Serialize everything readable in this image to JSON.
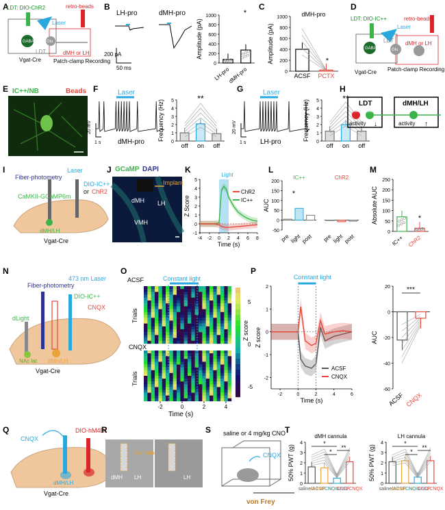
{
  "figure": {
    "panel_labels": [
      "A",
      "B",
      "C",
      "D",
      "E",
      "F",
      "G",
      "H",
      "I",
      "J",
      "K",
      "L",
      "M",
      "N",
      "O",
      "P",
      "Q",
      "R",
      "S",
      "T"
    ],
    "A": {
      "ldt_injection": "LDT: DIO-ChR2",
      "retro_beads": "retro-beads",
      "laser": "Laser",
      "gaba": "GABA",
      "ldt": "LDT",
      "glu": "Glu",
      "target": "dMH or LH",
      "mouse": "Vgat-Cre",
      "recording": "Patch-clamp\nRecording"
    },
    "B": {
      "trace1": "LH-pro",
      "trace2": "dMH-pro",
      "scale_y": "200 pA",
      "scale_x": "50 ms",
      "ylabel": "Amplitude (pA)",
      "cats": [
        "LH-pro",
        "dMH-pro"
      ],
      "sig": "*"
    },
    "C": {
      "title": "dMH-pro",
      "ylabel": "Amplitude (pA)",
      "cats": [
        "ACSF",
        "PCTX"
      ],
      "sig": "*"
    },
    "D": {
      "ldt_injection": "LDT: DIO-IC++",
      "retro_beads": "retro-beads",
      "laser": "Laser",
      "gaba": "GABA",
      "ldt": "LDT",
      "glu": "Glu",
      "target": "dMH or LH",
      "mouse": "Vgat-Cre",
      "recording": "Patch-clamp\nRecording"
    },
    "E": {
      "label1": "IC++/NB",
      "label2": "Beads"
    },
    "F": {
      "laser": "Laser",
      "scale_y": "20 mV",
      "scale_x": "1 s",
      "cell": "dMH-pro",
      "ylabel": "Frequency (Hz)",
      "cats": [
        "off",
        "on",
        "off"
      ],
      "sig": "**"
    },
    "G": {
      "laser": "Laser",
      "scale_y": "20 mV",
      "scale_x": "1 s",
      "cell": "LH-pro",
      "ylabel": "Frequency (Hz)",
      "cats": [
        "off",
        "on",
        "off"
      ],
      "sig": "**"
    },
    "H": {
      "ldt": "LDT",
      "target": "dMH/LH",
      "gaba": "GABA",
      "glu": "Glu",
      "activity": "activity"
    },
    "I": {
      "fiber": "Fiber-photometry",
      "laser": "Laser",
      "virus": "CaMKII-GCaMP6m",
      "opsin": "DIO-IC++",
      "or": "or",
      "opsin2": "ChR2",
      "target": "dMH/LH",
      "mouse": "Vgat-Cre"
    },
    "J": {
      "stain1": "GCaMP",
      "stain2": "DAPI",
      "implant": "Implant",
      "r1": "dMH",
      "r2": "LH",
      "r3": "VMH"
    },
    "K": {
      "light": "Light",
      "xlabel": "Time (s)",
      "ylabel": "Z Score",
      "s1": "ChR2",
      "s2": "IC++"
    },
    "L": {
      "g1": "IC++",
      "g2": "ChR2",
      "ylabel": "AUC",
      "cats": [
        "pre",
        "light",
        "post"
      ],
      "sig": "*"
    },
    "M": {
      "ylabel": "Absolute AUC",
      "cats": [
        "IC++",
        "ChR2"
      ],
      "sig": "*"
    },
    "N": {
      "fiber": "Fiber-photometry",
      "laser": "473 nm Laser",
      "opsin": "DIO-IC++",
      "drug": "CNQX",
      "sensor": "dLight",
      "nac": "NAc lat",
      "target": "dMH/LH",
      "mouse": "Vgat-Cre"
    },
    "O": {
      "c1": "ACSF",
      "c2": "CNQX",
      "light": "Constant light",
      "ylabel": "Trials",
      "xlabel": "Time (s)",
      "cbar": "Z score"
    },
    "P": {
      "light": "Constant light",
      "xlabel": "Time (s)",
      "ylabel": "Z score",
      "s1": "ACSF",
      "s2": "CNQX",
      "ylabel2": "AUC",
      "cats": [
        "ACSF",
        "CNQX"
      ],
      "sig": "***"
    },
    "Q": {
      "drug": "CNQX",
      "virus": "DIO-hM4Di",
      "target": "dMH/LH",
      "mouse": "Vgat-Cre"
    },
    "R": {
      "cannula": "Cannula",
      "r1": "dMH",
      "r2": "LH",
      "r3": "LH"
    },
    "S": {
      "treatment": "saline or\n4 mg/kg CNO",
      "drug": "CNQX",
      "test": "von Frey"
    },
    "T": {
      "title1": "dMH cannula",
      "title2": "LH cannula",
      "ylabel": "50% PWT (g)",
      "cats": [
        "saline/\nACSF",
        "saline/\nCNQX",
        "CNO/\nACSF",
        "CNO/\nCNQX"
      ],
      "sig": "*"
    }
  },
  "chart_data": [
    {
      "panel": "B",
      "type": "bar",
      "categories": [
        "LH-pro",
        "dMH-pro"
      ],
      "values": [
        75,
        270
      ],
      "ylim": [
        0,
        1000
      ],
      "yticks": [
        0,
        200,
        400,
        600,
        800,
        1000
      ],
      "ylabel": "Amplitude (pA)"
    },
    {
      "panel": "C",
      "type": "bar",
      "categories": [
        "ACSF",
        "PCTX"
      ],
      "values": [
        400,
        20
      ],
      "ylim": [
        0,
        1000
      ],
      "yticks": [
        0,
        200,
        400,
        600,
        800,
        1000
      ],
      "ylabel": "Amplitude (pA)"
    },
    {
      "panel": "F",
      "type": "bar",
      "categories": [
        "off",
        "on",
        "off"
      ],
      "values": [
        1.0,
        2.1,
        0.9
      ],
      "ylim": [
        0,
        5
      ],
      "yticks": [
        0,
        1,
        2,
        3,
        4,
        5
      ],
      "ylabel": "Frequency (Hz)"
    },
    {
      "panel": "G",
      "type": "bar",
      "categories": [
        "off",
        "on",
        "off"
      ],
      "values": [
        1.2,
        2.0,
        1.2
      ],
      "ylim": [
        0,
        5
      ],
      "yticks": [
        0,
        1,
        2,
        3,
        4,
        5
      ],
      "ylabel": "Frequency (Hz)"
    },
    {
      "panel": "K",
      "type": "line",
      "xlabel": "Time (s)",
      "ylabel": "Z Score",
      "xlim": [
        -4,
        8
      ],
      "ylim": [
        -1,
        5
      ],
      "xticks": [
        -4,
        -2,
        0,
        2,
        4,
        6,
        8
      ],
      "yticks": [
        -1,
        0,
        1,
        2,
        3,
        4,
        5
      ],
      "x": [
        -4,
        -3,
        -2,
        -1,
        0,
        0.5,
        1,
        1.5,
        2,
        3,
        4,
        5,
        6,
        7,
        8
      ],
      "series": [
        {
          "name": "IC++",
          "values": [
            0,
            0,
            0,
            0,
            0.1,
            3.8,
            4.2,
            3.9,
            3.0,
            2.0,
            1.3,
            0.9,
            0.6,
            0.4,
            0.3
          ]
        },
        {
          "name": "ChR2",
          "values": [
            0,
            0,
            0,
            0,
            -0.1,
            -0.3,
            -0.35,
            -0.4,
            -0.4,
            -0.35,
            -0.3,
            -0.25,
            -0.2,
            -0.15,
            -0.1
          ]
        }
      ]
    },
    {
      "panel": "L",
      "type": "bar",
      "groups": [
        "IC++",
        "ChR2"
      ],
      "categories": [
        "pre",
        "light",
        "post"
      ],
      "series": [
        {
          "name": "IC++",
          "values": [
            5,
            60,
            25
          ]
        },
        {
          "name": "ChR2",
          "values": [
            -2,
            -8,
            -5
          ]
        }
      ],
      "ylim": [
        -50,
        200
      ],
      "yticks": [
        -50,
        0,
        50,
        100,
        150,
        200
      ],
      "ylabel": "AUC"
    },
    {
      "panel": "M",
      "type": "bar",
      "categories": [
        "IC++",
        "ChR2"
      ],
      "values": [
        70,
        15
      ],
      "ylim": [
        0,
        250
      ],
      "yticks": [
        0,
        50,
        100,
        150,
        200,
        250
      ],
      "ylabel": "Absolute AUC"
    },
    {
      "panel": "P",
      "type": "line",
      "xlabel": "Time (s)",
      "ylabel": "Z score",
      "xlim": [
        -3,
        6
      ],
      "ylim": [
        -2.5,
        2
      ],
      "xticks": [
        -2,
        0,
        2,
        4,
        6
      ],
      "yticks": [
        -2,
        -1,
        0,
        1,
        2
      ],
      "x": [
        -3,
        -2,
        -1,
        0,
        0.3,
        0.8,
        1.5,
        2,
        2.5,
        3,
        4,
        5,
        6
      ],
      "series": [
        {
          "name": "ACSF",
          "values": [
            0,
            0,
            0,
            0,
            -1.2,
            -1.5,
            -1.6,
            -1.4,
            0.2,
            -0.4,
            -0.2,
            -0.1,
            0
          ]
        },
        {
          "name": "CNQX",
          "values": [
            0,
            0,
            0,
            0,
            1.1,
            -0.4,
            -0.6,
            -0.5,
            0.5,
            -0.1,
            0,
            0.05,
            0
          ]
        }
      ]
    },
    {
      "panel": "P-AUC",
      "type": "bar",
      "categories": [
        "ACSF",
        "CNQX"
      ],
      "values": [
        -22,
        -5
      ],
      "ylim": [
        -60,
        20
      ],
      "yticks": [
        -60,
        -40,
        -20,
        0,
        20
      ],
      "ylabel": "AUC"
    },
    {
      "panel": "T-dMH",
      "type": "bar",
      "categories": [
        "saline/ACSF",
        "saline/CNQX",
        "CNO/ACSF",
        "CNO/CNQX"
      ],
      "values": [
        1.6,
        1.5,
        0.5,
        2.1
      ],
      "ylim": [
        0,
        4
      ],
      "yticks": [
        0,
        1,
        2,
        3,
        4
      ],
      "ylabel": "50% PWT (g)"
    },
    {
      "panel": "T-LH",
      "type": "bar",
      "categories": [
        "saline/ACSF",
        "saline/CNQX",
        "CNO/ACSF",
        "CNO/CNQX"
      ],
      "values": [
        2.1,
        2.2,
        0.6,
        2.2
      ],
      "ylim": [
        0,
        4
      ],
      "yticks": [
        0,
        1,
        2,
        3,
        4
      ],
      "ylabel": "50% PWT (g)"
    }
  ],
  "colors": {
    "ic": "#29a8df",
    "chr2": "#e8463a",
    "green": "#3bb54a",
    "gaba": "#d9252a",
    "glu": "#4caf50",
    "orange": "#e9a33a",
    "brain": "#f0c79d"
  }
}
